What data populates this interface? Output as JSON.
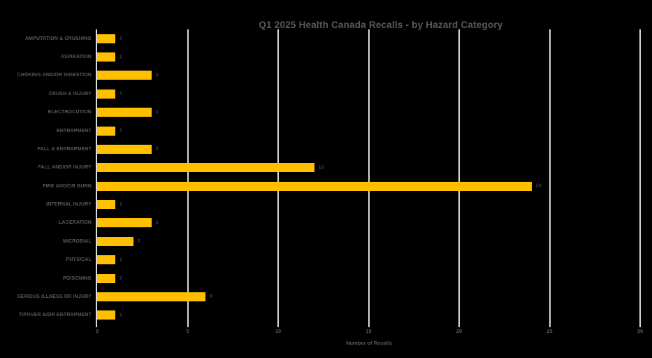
{
  "chart_data": {
    "type": "bar",
    "orientation": "horizontal",
    "title": "Q1 2025 Health Canada Recalls - by Hazard Category",
    "xlabel": "Number of Recalls",
    "categories": [
      "AMPUTATION & CRUSHING",
      "ASPIRATION",
      "CHOKING AND/OR INGESTION",
      "CRUSH & INJURY",
      "ELECTROCUTION",
      "ENTRAPMENT",
      "FALL & ENTRAPMENT",
      "FALL AND/OR INJURY",
      "FIRE AND/OR BURN",
      "INTERNAL INJURY",
      "LACERATION",
      "MICROBIAL",
      "PHYSICAL",
      "POISONING",
      "SERIOUS ILLNESS OR INJURY",
      "TIPOVER &/OR ENTRAPMENT"
    ],
    "values": [
      1,
      1,
      3,
      1,
      3,
      1,
      3,
      12,
      24,
      1,
      3,
      2,
      1,
      1,
      6,
      1
    ],
    "value_labels": [
      "1",
      "1",
      "3",
      "1",
      "3",
      "1",
      "3",
      "12",
      "24",
      "1",
      "3",
      "2",
      "1",
      "1",
      "6",
      "1"
    ],
    "xlim": [
      0,
      30
    ],
    "xticks": [
      0,
      5,
      10,
      15,
      20,
      25,
      30
    ],
    "grid": "vertical-gridlines",
    "legend": "none",
    "colors": {
      "background": "#000000",
      "bar": "#FFC000",
      "title_text": "#595959",
      "category_text": "#595959",
      "value_text": "#3F3F3F",
      "tick_text": "#595959",
      "axis_label_text": "#595959",
      "gridline": "#D9D9D9",
      "axis_line": "#DCDCDC"
    }
  }
}
